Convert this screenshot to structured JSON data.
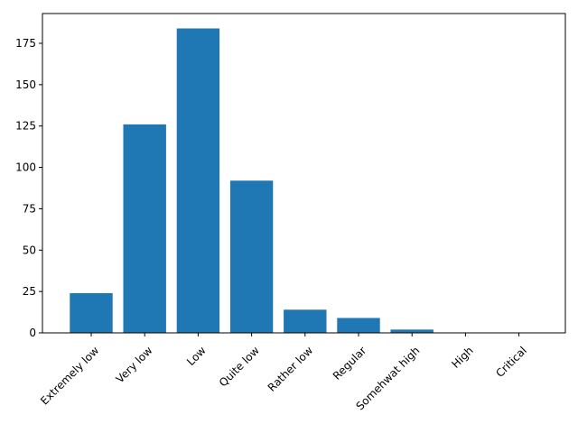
{
  "chart_data": {
    "type": "bar",
    "categories": [
      "Extremely low",
      "Very low",
      "Low",
      "Quite low",
      "Rather low",
      "Regular",
      "Somehwat high",
      "High",
      "Critical"
    ],
    "values": [
      24,
      126,
      184,
      92,
      14,
      9,
      2,
      0,
      0
    ],
    "ylim": [
      0,
      193
    ],
    "yticks": [
      0,
      25,
      50,
      75,
      100,
      125,
      150,
      175
    ],
    "bar_color": "#1f77b4",
    "grid": false,
    "title": "",
    "xlabel": "",
    "ylabel": ""
  }
}
